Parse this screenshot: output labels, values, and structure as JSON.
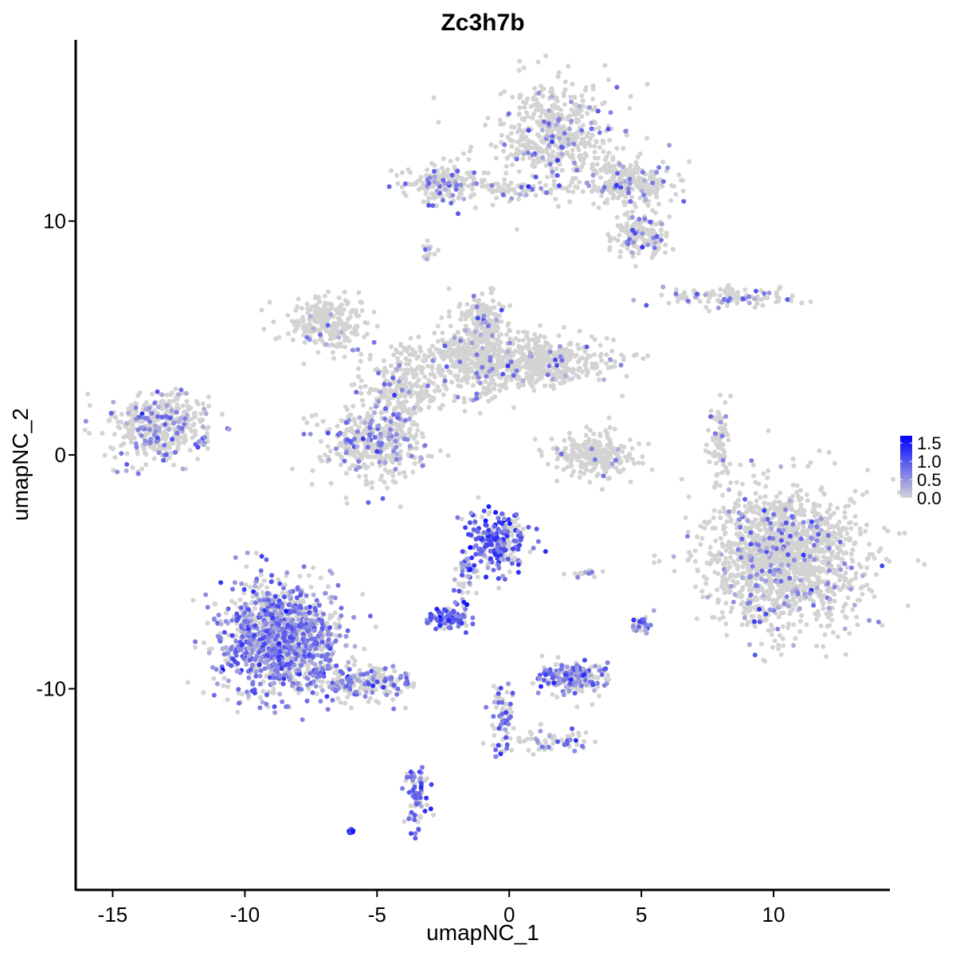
{
  "chart_data": {
    "type": "scatter",
    "title": "Zc3h7b",
    "xlabel": "umapNC_1",
    "ylabel": "umapNC_2",
    "xlim": [
      -16.4,
      14.4
    ],
    "ylim": [
      -18.6,
      17.75
    ],
    "xticks": [
      -15,
      -10,
      -5,
      0,
      5,
      10
    ],
    "xtick_labels": [
      "-15",
      "-10",
      "-5",
      "0",
      "5",
      "10"
    ],
    "yticks": [
      -10,
      0,
      10
    ],
    "ytick_labels": [
      "-10",
      "0",
      "10"
    ],
    "grid": false,
    "legend": {
      "placement": "right",
      "type": "colorbar",
      "ticks": [
        0.0,
        0.5,
        1.0,
        1.5
      ],
      "tick_labels": [
        "0.0",
        "0.5",
        "1.0",
        "1.5"
      ],
      "range": [
        0,
        1.7
      ],
      "low_color": "#d3d3d3",
      "high_color": "#0000ff"
    },
    "clusters": [
      {
        "center": [
          1.85,
          13.7
        ],
        "spread": [
          1.4,
          1.4
        ],
        "n": 500,
        "expr_fraction": 0.12,
        "mean_expr": 0.6
      },
      {
        "center": [
          4.6,
          11.6
        ],
        "spread": [
          1.1,
          0.6
        ],
        "n": 250,
        "expr_fraction": 0.1,
        "mean_expr": 0.6
      },
      {
        "center": [
          5.0,
          9.4
        ],
        "spread": [
          0.7,
          0.6
        ],
        "n": 160,
        "expr_fraction": 0.2,
        "mean_expr": 0.7
      },
      {
        "center": [
          -2.4,
          11.6
        ],
        "spread": [
          1.0,
          0.5
        ],
        "n": 180,
        "expr_fraction": 0.2,
        "mean_expr": 0.7
      },
      {
        "center": [
          0.3,
          11.4
        ],
        "spread": [
          1.2,
          0.25
        ],
        "n": 60,
        "expr_fraction": 0.15,
        "mean_expr": 0.6
      },
      {
        "center": [
          -3.0,
          8.7
        ],
        "spread": [
          0.2,
          0.2
        ],
        "n": 15,
        "expr_fraction": 0.2,
        "mean_expr": 0.5
      },
      {
        "center": [
          -1.2,
          4.1
        ],
        "spread": [
          1.5,
          1.0
        ],
        "n": 500,
        "expr_fraction": 0.07,
        "mean_expr": 0.6
      },
      {
        "center": [
          1.6,
          4.0
        ],
        "spread": [
          1.4,
          0.6
        ],
        "n": 350,
        "expr_fraction": 0.07,
        "mean_expr": 0.6
      },
      {
        "center": [
          -1.0,
          5.6
        ],
        "spread": [
          0.5,
          0.8
        ],
        "n": 150,
        "expr_fraction": 0.1,
        "mean_expr": 0.6
      },
      {
        "center": [
          -6.9,
          5.6
        ],
        "spread": [
          0.9,
          0.7
        ],
        "n": 250,
        "expr_fraction": 0.05,
        "mean_expr": 0.5
      },
      {
        "center": [
          -5.1,
          0.6
        ],
        "spread": [
          1.2,
          1.0
        ],
        "n": 400,
        "expr_fraction": 0.2,
        "mean_expr": 0.6
      },
      {
        "center": [
          -4.0,
          3.0
        ],
        "spread": [
          0.8,
          0.9
        ],
        "n": 200,
        "expr_fraction": 0.08,
        "mean_expr": 0.6
      },
      {
        "center": [
          -13.2,
          1.2
        ],
        "spread": [
          1.2,
          0.9
        ],
        "n": 400,
        "expr_fraction": 0.25,
        "mean_expr": 0.6
      },
      {
        "center": [
          3.2,
          0.0
        ],
        "spread": [
          1.0,
          0.6
        ],
        "n": 250,
        "expr_fraction": 0.04,
        "mean_expr": 0.5
      },
      {
        "center": [
          8.3,
          6.8
        ],
        "spread": [
          1.6,
          0.25
        ],
        "n": 120,
        "expr_fraction": 0.2,
        "mean_expr": 0.6
      },
      {
        "center": [
          8.0,
          0.4
        ],
        "spread": [
          0.25,
          1.2
        ],
        "n": 80,
        "expr_fraction": 0.1,
        "mean_expr": 0.5
      },
      {
        "center": [
          10.45,
          -4.4
        ],
        "spread": [
          1.9,
          1.8
        ],
        "n": 1500,
        "expr_fraction": 0.1,
        "mean_expr": 0.6
      },
      {
        "center": [
          -8.7,
          -7.8
        ],
        "spread": [
          1.4,
          1.5
        ],
        "n": 1200,
        "expr_fraction": 0.55,
        "mean_expr": 0.7
      },
      {
        "center": [
          -5.5,
          -9.8
        ],
        "spread": [
          1.2,
          0.5
        ],
        "n": 200,
        "expr_fraction": 0.4,
        "mean_expr": 0.7
      },
      {
        "center": [
          -3.5,
          -14.6
        ],
        "spread": [
          0.3,
          0.8
        ],
        "n": 70,
        "expr_fraction": 0.7,
        "mean_expr": 0.9
      },
      {
        "center": [
          -6.0,
          -16.1
        ],
        "spread": [
          0.1,
          0.06
        ],
        "n": 12,
        "expr_fraction": 1.0,
        "mean_expr": 1.5
      },
      {
        "center": [
          -0.55,
          -3.7
        ],
        "spread": [
          0.8,
          0.8
        ],
        "n": 250,
        "expr_fraction": 0.6,
        "mean_expr": 1.0
      },
      {
        "center": [
          -2.2,
          -7.0
        ],
        "spread": [
          0.5,
          0.3
        ],
        "n": 80,
        "expr_fraction": 0.7,
        "mean_expr": 0.9
      },
      {
        "center": [
          -1.7,
          -5.5
        ],
        "spread": [
          0.3,
          0.8
        ],
        "n": 40,
        "expr_fraction": 0.5,
        "mean_expr": 0.8
      },
      {
        "center": [
          2.3,
          -9.5
        ],
        "spread": [
          0.8,
          0.4
        ],
        "n": 200,
        "expr_fraction": 0.6,
        "mean_expr": 0.7
      },
      {
        "center": [
          -0.3,
          -11.2
        ],
        "spread": [
          0.3,
          1.2
        ],
        "n": 70,
        "expr_fraction": 0.4,
        "mean_expr": 0.8
      },
      {
        "center": [
          1.5,
          -12.3
        ],
        "spread": [
          1.0,
          0.3
        ],
        "n": 60,
        "expr_fraction": 0.3,
        "mean_expr": 0.8
      },
      {
        "center": [
          5.0,
          -7.3
        ],
        "spread": [
          0.2,
          0.3
        ],
        "n": 30,
        "expr_fraction": 0.6,
        "mean_expr": 0.7
      },
      {
        "center": [
          2.9,
          -5.0
        ],
        "spread": [
          0.4,
          0.1
        ],
        "n": 15,
        "expr_fraction": 0.4,
        "mean_expr": 0.6
      }
    ]
  }
}
